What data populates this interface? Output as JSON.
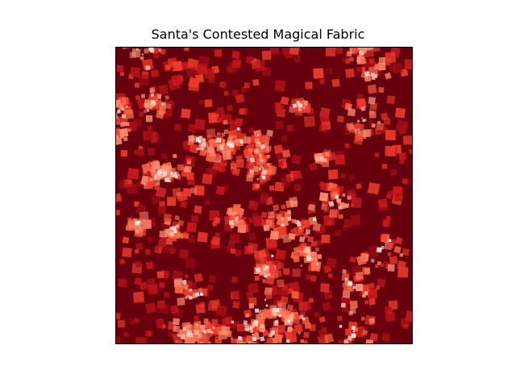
{
  "title": "Santa's Contested Magical Fabric",
  "image": {
    "kind": "scattered-rotated-squares-heat-texture",
    "colormap": "Reds",
    "background_color": "#67000d",
    "colors": [
      "#67000d",
      "#a50f15",
      "#cb181d",
      "#ef3b2c",
      "#fb6a4a",
      "#fc9272",
      "#fcbba1",
      "#fee0d2",
      "#fff5f0"
    ],
    "axes_visible": false
  }
}
